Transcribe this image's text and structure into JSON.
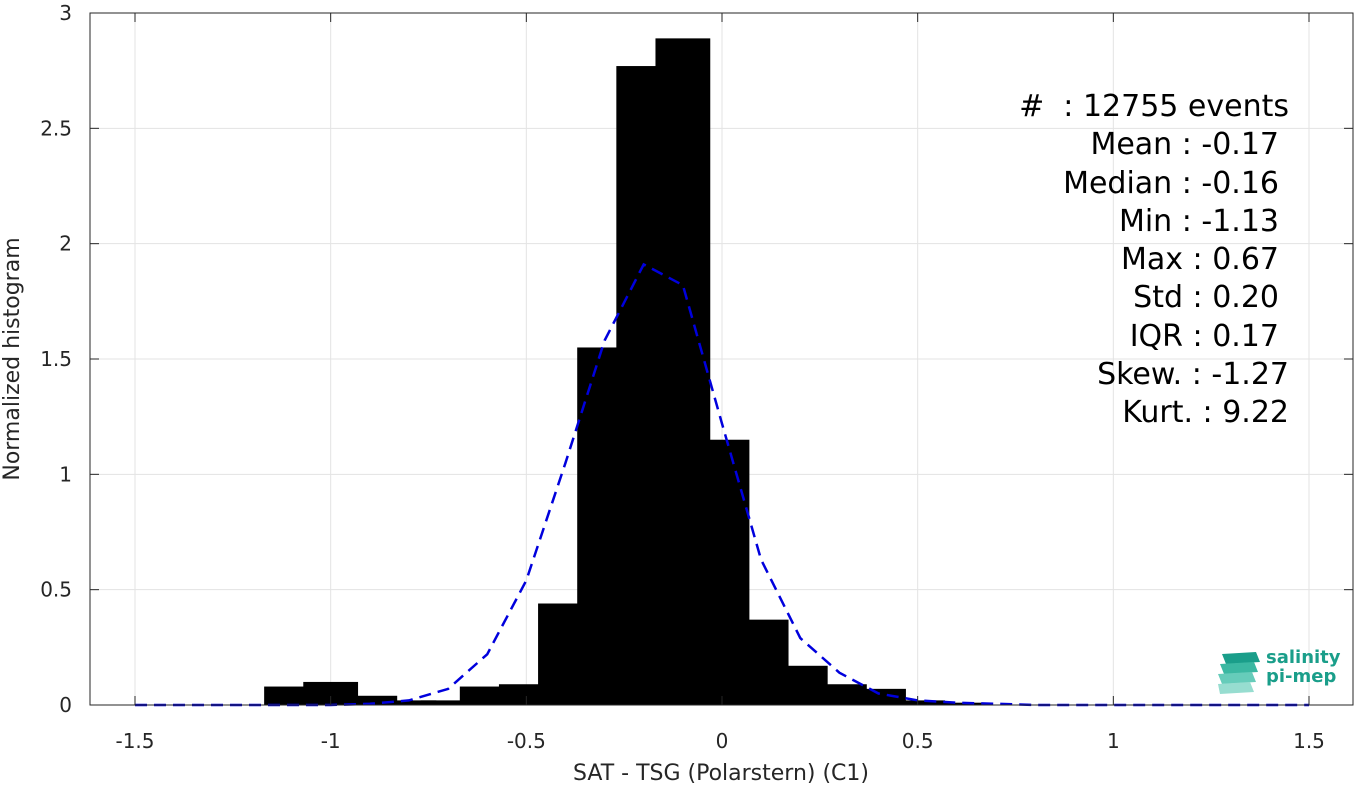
{
  "chart_data": {
    "type": "bar",
    "xlabel": "SAT - TSG (Polarstern) (C1)",
    "ylabel": "Normalized histogram",
    "xlim": [
      -1.5,
      1.5
    ],
    "ylim": [
      0,
      3
    ],
    "xticks": [
      "-1.5",
      "-1",
      "-0.5",
      "0",
      "0.5",
      "1",
      "1.5"
    ],
    "xtick_values": [
      -1.5,
      -1,
      -0.5,
      0,
      0.5,
      1,
      1.5
    ],
    "yticks": [
      "0",
      "0.5",
      "1",
      "1.5",
      "2",
      "2.5",
      "3"
    ],
    "ytick_values": [
      0,
      0.5,
      1,
      1.5,
      2,
      2.5,
      3
    ],
    "grid": true,
    "bar_color": "#000000",
    "fit_color": "#0000dd",
    "bars": {
      "x": [
        -1.1,
        -1.0,
        -0.9,
        -0.8,
        -0.7,
        -0.6,
        -0.5,
        -0.4,
        -0.3,
        -0.2,
        -0.1,
        0.0,
        0.1,
        0.2,
        0.3,
        0.4,
        0.5,
        0.6,
        0.7
      ],
      "values": [
        0.08,
        0.1,
        0.04,
        0.02,
        0.02,
        0.08,
        0.09,
        0.44,
        1.55,
        2.77,
        2.89,
        1.15,
        0.37,
        0.17,
        0.09,
        0.07,
        0.02,
        0.01,
        0.0
      ]
    },
    "fit_line": {
      "style": "dashed",
      "x": [
        -1.5,
        -1.4,
        -1.3,
        -1.2,
        -1.1,
        -1.0,
        -0.9,
        -0.8,
        -0.7,
        -0.6,
        -0.5,
        -0.4,
        -0.3,
        -0.2,
        -0.1,
        0.0,
        0.1,
        0.2,
        0.3,
        0.4,
        0.5,
        0.6,
        0.7,
        0.8,
        0.9,
        1.0,
        1.1,
        1.2,
        1.3,
        1.4,
        1.5
      ],
      "y": [
        0,
        0,
        0,
        0,
        0,
        0,
        0.005,
        0.02,
        0.07,
        0.22,
        0.54,
        1.05,
        1.58,
        1.91,
        1.82,
        1.22,
        0.63,
        0.29,
        0.14,
        0.05,
        0.02,
        0.01,
        0.005,
        0,
        0,
        0,
        0,
        0,
        0,
        0,
        0
      ]
    },
    "annotations": [
      "#  : 12755 events",
      "Mean : -0.17",
      "Median : -0.16",
      "Min : -1.13",
      "Max : 0.67",
      "Std : 0.20",
      "IQR : 0.17",
      "Skew. : -1.27",
      "Kurt. : 9.22"
    ]
  },
  "logo": {
    "line1": "salinity",
    "line2": "pi-mep",
    "colors": [
      "#1a9e8a",
      "#7fd3c4"
    ]
  }
}
